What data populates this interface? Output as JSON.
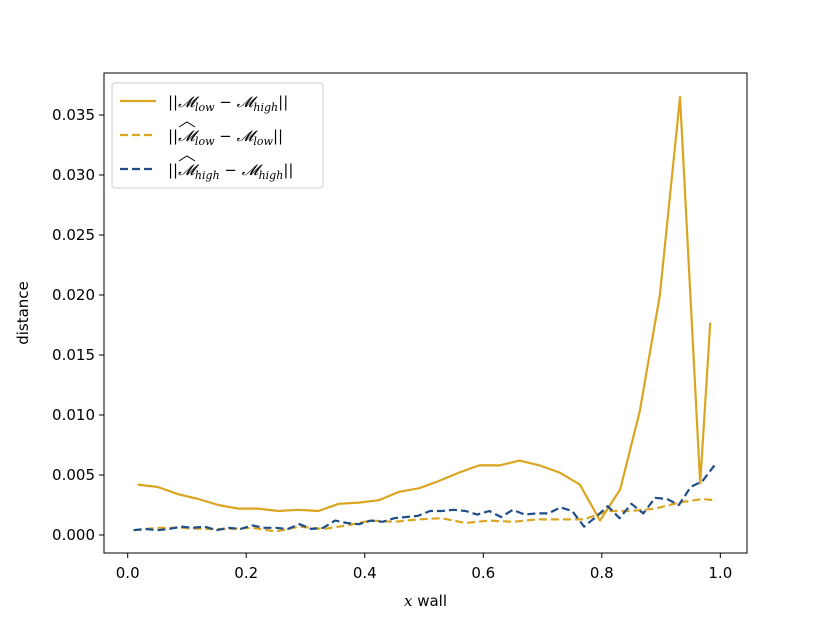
{
  "chart_data": {
    "type": "line",
    "title": "",
    "xlabel_var": "x",
    "xlabel_rest": " wall",
    "ylabel": "distance",
    "xlim": [
      -0.04,
      1.045
    ],
    "ylim": [
      -0.0015,
      0.0385
    ],
    "xticks": [
      0.0,
      0.2,
      0.4,
      0.6,
      0.8,
      1.0
    ],
    "xtick_labels": [
      "0.0",
      "0.2",
      "0.4",
      "0.6",
      "0.8",
      "1.0"
    ],
    "yticks": [
      0.0,
      0.005,
      0.01,
      0.015,
      0.02,
      0.025,
      0.03,
      0.035
    ],
    "ytick_labels": [
      "0.000",
      "0.005",
      "0.010",
      "0.015",
      "0.020",
      "0.025",
      "0.030",
      "0.035"
    ],
    "legend_position": "upper-left",
    "series": [
      {
        "legend_label": "||𝓜low − 𝓜high||",
        "legend_parts": {
          "bar_left": "||",
          "sym": "𝓜",
          "sub": "low",
          "minus": " − ",
          "sym2": "𝓜",
          "sub2": "high",
          "bar_right": "||",
          "hat1": false
        },
        "color": "#DAA520",
        "dash": "solid",
        "x": [
          0.017,
          0.051,
          0.085,
          0.119,
          0.153,
          0.186,
          0.22,
          0.254,
          0.288,
          0.322,
          0.356,
          0.39,
          0.424,
          0.458,
          0.492,
          0.525,
          0.559,
          0.593,
          0.627,
          0.661,
          0.695,
          0.729,
          0.763,
          0.797,
          0.831,
          0.864,
          0.898,
          0.932,
          0.966,
          0.983
        ],
        "y": [
          0.0042,
          0.004,
          0.0034,
          0.003,
          0.0025,
          0.0022,
          0.0022,
          0.002,
          0.0021,
          0.002,
          0.0026,
          0.0027,
          0.0029,
          0.0036,
          0.0039,
          0.0045,
          0.0052,
          0.0058,
          0.0058,
          0.0062,
          0.0058,
          0.0052,
          0.0042,
          0.0012,
          0.0038,
          0.0103,
          0.02,
          0.0365,
          0.0043,
          0.0177
        ]
      },
      {
        "legend_label": "||𝓜̂low − 𝓜low||",
        "legend_parts": {
          "bar_left": "||",
          "sym": "𝓜",
          "sub": "low",
          "minus": " − ",
          "sym2": "𝓜",
          "sub2": "low",
          "bar_right": "||",
          "hat1": true
        },
        "color": "#DAA520",
        "dash": "dashed",
        "x": [
          0.01,
          0.05,
          0.09,
          0.13,
          0.17,
          0.21,
          0.25,
          0.29,
          0.33,
          0.37,
          0.41,
          0.45,
          0.49,
          0.53,
          0.57,
          0.61,
          0.65,
          0.69,
          0.73,
          0.77,
          0.81,
          0.85,
          0.89,
          0.93,
          0.97,
          0.99
        ],
        "y": [
          0.0004,
          0.0006,
          0.0006,
          0.0005,
          0.0005,
          0.0006,
          0.0003,
          0.0007,
          0.0005,
          0.0008,
          0.0012,
          0.0011,
          0.0013,
          0.0014,
          0.001,
          0.0012,
          0.0011,
          0.0013,
          0.0013,
          0.0013,
          0.002,
          0.002,
          0.0022,
          0.0027,
          0.003,
          0.0029
        ]
      },
      {
        "legend_label": "||𝓜̂high − 𝓜high||",
        "legend_parts": {
          "bar_left": "||",
          "sym": "𝓜",
          "sub": "high",
          "minus": " − ",
          "sym2": "𝓜",
          "sub2": "high",
          "bar_right": "||",
          "hat1": true
        },
        "color": "#1F4E89",
        "dash": "dashed",
        "x": [
          0.01,
          0.03,
          0.05,
          0.07,
          0.09,
          0.11,
          0.13,
          0.15,
          0.17,
          0.19,
          0.21,
          0.23,
          0.25,
          0.27,
          0.29,
          0.31,
          0.33,
          0.35,
          0.37,
          0.39,
          0.41,
          0.43,
          0.45,
          0.47,
          0.49,
          0.51,
          0.53,
          0.55,
          0.57,
          0.59,
          0.61,
          0.63,
          0.65,
          0.67,
          0.69,
          0.71,
          0.73,
          0.75,
          0.77,
          0.79,
          0.81,
          0.83,
          0.85,
          0.87,
          0.89,
          0.91,
          0.93,
          0.95,
          0.97,
          0.99
        ],
        "y": [
          0.0004,
          0.0005,
          0.0004,
          0.0005,
          0.0007,
          0.0006,
          0.0007,
          0.0004,
          0.0006,
          0.0005,
          0.0008,
          0.0006,
          0.0006,
          0.0005,
          0.0009,
          0.0005,
          0.0006,
          0.0012,
          0.001,
          0.0009,
          0.0012,
          0.0011,
          0.0014,
          0.0015,
          0.0016,
          0.002,
          0.002,
          0.0021,
          0.002,
          0.0017,
          0.002,
          0.0015,
          0.0021,
          0.0017,
          0.0018,
          0.0018,
          0.0023,
          0.002,
          0.0007,
          0.0015,
          0.0024,
          0.0014,
          0.0026,
          0.0018,
          0.0031,
          0.003,
          0.0025,
          0.004,
          0.0045,
          0.0058
        ]
      }
    ]
  }
}
